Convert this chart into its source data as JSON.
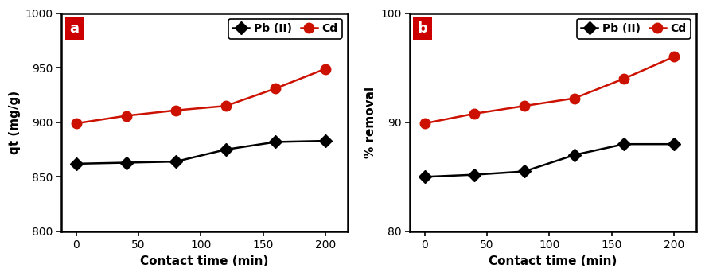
{
  "x": [
    0,
    40,
    80,
    120,
    160,
    200
  ],
  "panel_a": {
    "pb": [
      862,
      863,
      864,
      875,
      882,
      883
    ],
    "cd": [
      899,
      906,
      911,
      915,
      931,
      949
    ],
    "ylabel": "qt (mg/g)",
    "ylim": [
      800,
      1000
    ],
    "yticks": [
      800,
      850,
      900,
      950,
      1000
    ],
    "label": "a"
  },
  "panel_b": {
    "pb": [
      85.0,
      85.2,
      85.5,
      87.0,
      88.0,
      88.0
    ],
    "cd": [
      89.9,
      90.8,
      91.5,
      92.2,
      94.0,
      96.0
    ],
    "ylabel": "% removal",
    "ylim": [
      80,
      100
    ],
    "yticks": [
      80,
      90,
      100
    ],
    "label": "b"
  },
  "xlabel": "Contact time (min)",
  "xticks": [
    0,
    50,
    100,
    150,
    200
  ],
  "pb_color": "#000000",
  "cd_color": "#cc1100",
  "pb_label": "Pb (II)",
  "cd_label": "Cd",
  "label_box_color": "#cc0000",
  "label_text_color": "#ffffff",
  "label_fontsize": 13,
  "axis_label_fontsize": 11,
  "tick_fontsize": 10,
  "legend_fontsize": 10
}
